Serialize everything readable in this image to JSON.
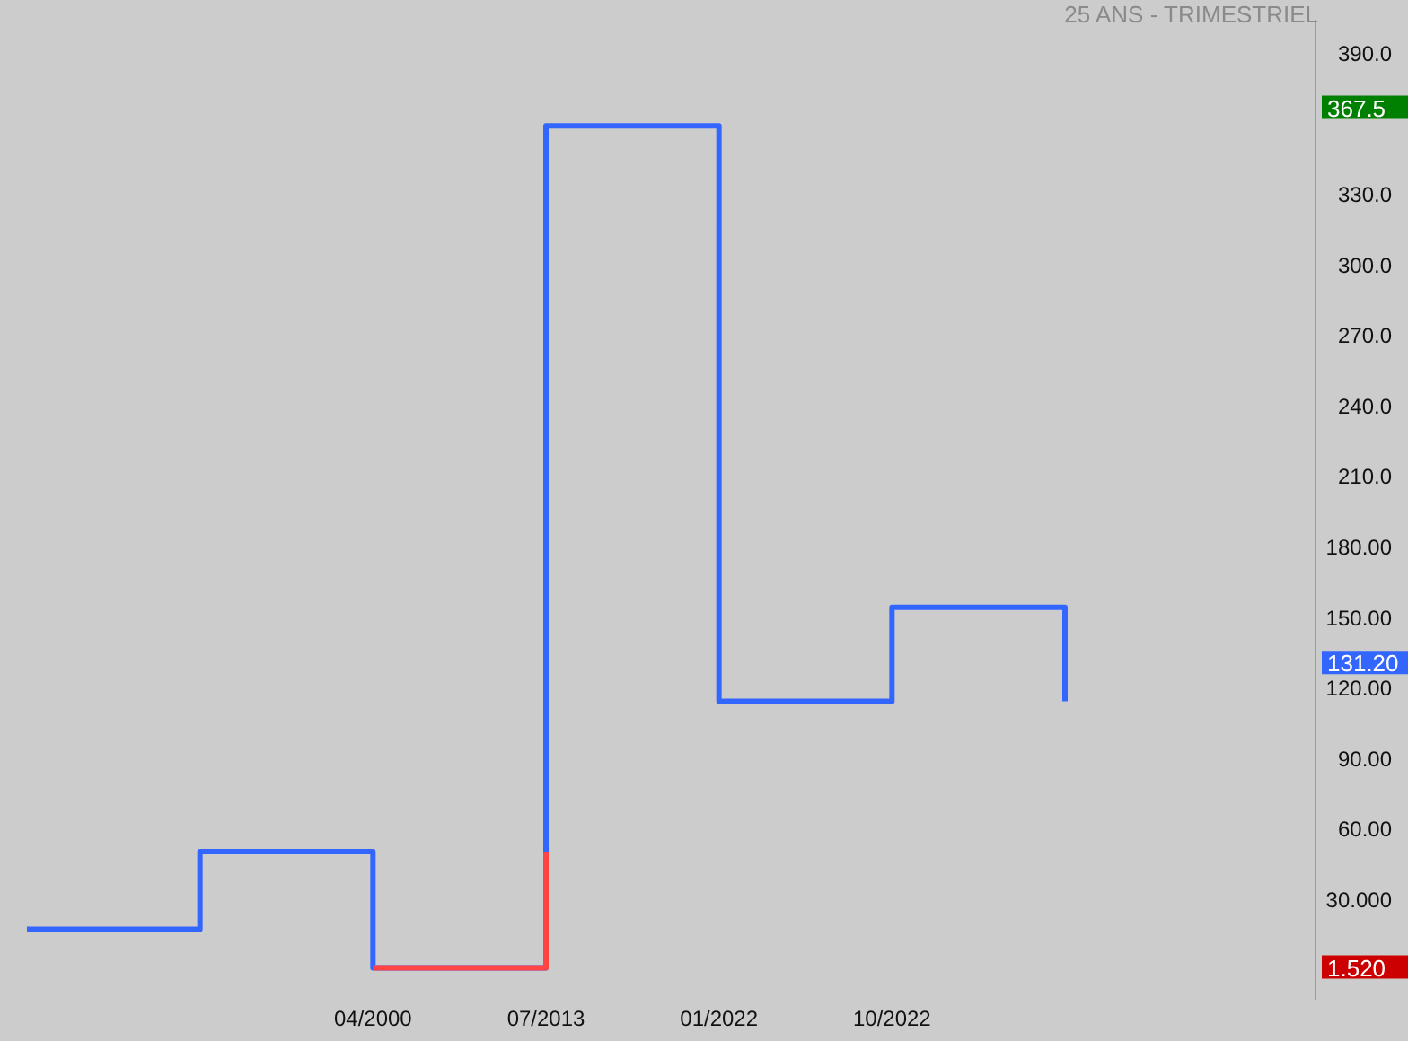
{
  "chart_data": {
    "type": "step",
    "title": "25 ANS - TRIMESTRIEL",
    "categories": [
      null,
      null,
      "04/2000",
      "07/2013",
      "01/2022",
      "10/2022",
      null
    ],
    "series": [
      {
        "color": "#3366ff",
        "values": [
          18,
          51,
          1.52,
          360,
          115,
          155,
          115
        ]
      },
      {
        "color": "#ff4444",
        "values": [
          null,
          null,
          1.52,
          51,
          null,
          null,
          null
        ]
      }
    ],
    "ylim": [
      -12,
      405
    ],
    "yticks": [
      {
        "value": 30,
        "label": "30.000"
      },
      {
        "value": 60,
        "label": "60.00"
      },
      {
        "value": 90,
        "label": "90.00"
      },
      {
        "value": 120,
        "label": "120.00"
      },
      {
        "value": 150,
        "label": "150.00"
      },
      {
        "value": 180,
        "label": "180.00"
      },
      {
        "value": 210,
        "label": "210.0"
      },
      {
        "value": 240,
        "label": "240.0"
      },
      {
        "value": 270,
        "label": "270.0"
      },
      {
        "value": 300,
        "label": "300.0"
      },
      {
        "value": 330,
        "label": "330.0"
      },
      {
        "value": 390,
        "label": "390.0"
      }
    ],
    "annotations": [
      "367.5",
      "131.20",
      "1.520"
    ],
    "grid": false,
    "legend": false
  }
}
